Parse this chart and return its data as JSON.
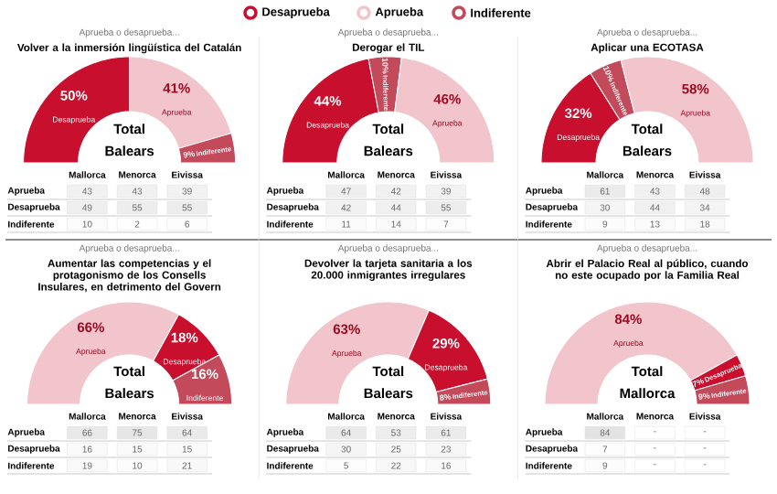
{
  "chart_data": [
    {
      "type": "donut",
      "subtitle": "Aprueba o desaprueba...",
      "title": "Volver a la inmersión lingüística del Catalán",
      "categories": [
        "Desaprueba",
        "Aprueba",
        "Indiferente"
      ],
      "values": [
        50,
        41,
        9
      ],
      "colors": [
        "#c8102e",
        "#f2c4cc",
        "#c24a5b"
      ],
      "value_labels": [
        "50%",
        "41%",
        "9%"
      ],
      "annotations": [
        "Total Balears"
      ],
      "legend": "top"
    },
    {
      "type": "heatmap",
      "categories": [
        "Mallorca",
        "Menorca",
        "Eivissa"
      ],
      "y_categories": [
        "Aprueba",
        "Desaprueba",
        "Indiferente"
      ],
      "cells": [
        [
          43,
          43,
          39
        ],
        [
          49,
          55,
          55
        ],
        [
          10,
          2,
          6
        ]
      ],
      "cell_labels": [
        [
          "43",
          "43",
          "39"
        ],
        [
          "49",
          "55",
          "55"
        ],
        [
          "10",
          "2",
          "6"
        ]
      ]
    },
    {
      "type": "donut",
      "subtitle": "Aprueba o desaprueba...",
      "title": "Derogar el TIL",
      "categories": [
        "Desaprueba",
        "Indiferente",
        "Aprueba"
      ],
      "values": [
        44,
        10,
        46
      ],
      "colors": [
        "#c8102e",
        "#c24a5b",
        "#f2c4cc"
      ],
      "value_labels": [
        "44%",
        "10%",
        "46%"
      ],
      "annotations": [
        "Total Balears"
      ]
    },
    {
      "type": "heatmap",
      "categories": [
        "Mallorca",
        "Menorca",
        "Eivissa"
      ],
      "y_categories": [
        "Aprueba",
        "Desaprueba",
        "Indiferente"
      ],
      "cells": [
        [
          47,
          42,
          39
        ],
        [
          42,
          44,
          55
        ],
        [
          11,
          14,
          7
        ]
      ],
      "cell_labels": [
        [
          "47",
          "42",
          "39"
        ],
        [
          "42",
          "44",
          "55"
        ],
        [
          "11",
          "14",
          "7"
        ]
      ]
    },
    {
      "type": "donut",
      "subtitle": "Aprueba o desaprueba...",
      "title": "Aplicar una ECOTASA",
      "categories": [
        "Desaprueba",
        "Indiferente",
        "Aprueba"
      ],
      "values": [
        32,
        10,
        58
      ],
      "colors": [
        "#c8102e",
        "#c24a5b",
        "#f2c4cc"
      ],
      "value_labels": [
        "32%",
        "10%",
        "58%"
      ],
      "annotations": [
        "Total Balears"
      ]
    },
    {
      "type": "heatmap",
      "categories": [
        "Mallorca",
        "Menorca",
        "Eivissa"
      ],
      "y_categories": [
        "Aprueba",
        "Desaprueba",
        "Indiferente"
      ],
      "cells": [
        [
          61,
          43,
          48
        ],
        [
          30,
          44,
          34
        ],
        [
          9,
          13,
          18
        ]
      ],
      "cell_labels": [
        [
          "61",
          "43",
          "48"
        ],
        [
          "30",
          "44",
          "34"
        ],
        [
          "9",
          "13",
          "18"
        ]
      ]
    },
    {
      "type": "donut",
      "subtitle": "Aprueba o desaprueba...",
      "title": "Aumentar las competencias y el protagonismo de los Consells Insulares, en detrimento del Govern",
      "categories": [
        "Aprueba",
        "Desaprueba",
        "Indiferente"
      ],
      "values": [
        66,
        18,
        16
      ],
      "colors": [
        "#f2c4cc",
        "#c8102e",
        "#c24a5b"
      ],
      "value_labels": [
        "66%",
        "18%",
        "16%"
      ],
      "annotations": [
        "Total Balears"
      ]
    },
    {
      "type": "heatmap",
      "categories": [
        "Mallorca",
        "Menorca",
        "Eivissa"
      ],
      "y_categories": [
        "Aprueba",
        "Desaprueba",
        "Indiferente"
      ],
      "cells": [
        [
          66,
          75,
          64
        ],
        [
          16,
          15,
          15
        ],
        [
          19,
          10,
          21
        ]
      ],
      "cell_labels": [
        [
          "66",
          "75",
          "64"
        ],
        [
          "16",
          "15",
          "15"
        ],
        [
          "19",
          "10",
          "21"
        ]
      ]
    },
    {
      "type": "donut",
      "subtitle": "Aprueba o desaprueba...",
      "title": "Devolver la tarjeta sanitaria a los 20.000 inmigrantes irregulares",
      "categories": [
        "Aprueba",
        "Desaprueba",
        "Indiferente"
      ],
      "values": [
        63,
        29,
        8
      ],
      "colors": [
        "#f2c4cc",
        "#c8102e",
        "#c24a5b"
      ],
      "value_labels": [
        "63%",
        "29%",
        "8%"
      ],
      "annotations": [
        "Total Balears"
      ]
    },
    {
      "type": "heatmap",
      "categories": [
        "Mallorca",
        "Menorca",
        "Eivissa"
      ],
      "y_categories": [
        "Aprueba",
        "Desaprueba",
        "Indiferente"
      ],
      "cells": [
        [
          64,
          53,
          61
        ],
        [
          30,
          25,
          23
        ],
        [
          5,
          22,
          16
        ]
      ],
      "cell_labels": [
        [
          "64",
          "53",
          "61"
        ],
        [
          "30",
          "25",
          "23"
        ],
        [
          "5",
          "22",
          "16"
        ]
      ]
    },
    {
      "type": "donut",
      "subtitle": "Aprueba o desaprueba...",
      "title": "Abrir el Palacio Real al público, cuando no este ocupado por la Familia Real",
      "categories": [
        "Aprueba",
        "Desaprueba",
        "Indiferente"
      ],
      "values": [
        84,
        7,
        9
      ],
      "colors": [
        "#f2c4cc",
        "#c8102e",
        "#c24a5b"
      ],
      "value_labels": [
        "84%",
        "7%",
        "9%"
      ],
      "annotations": [
        "Total Mallorca"
      ]
    },
    {
      "type": "heatmap",
      "categories": [
        "Mallorca",
        "Menorca",
        "Eivissa"
      ],
      "y_categories": [
        "Aprueba",
        "Desaprueba",
        "Indiferente"
      ],
      "cells": [
        [
          84,
          null,
          null
        ],
        [
          7,
          null,
          null
        ],
        [
          9,
          null,
          null
        ]
      ],
      "cell_labels": [
        [
          "84",
          "-",
          "-"
        ],
        [
          "7",
          "-",
          "-"
        ],
        [
          "9",
          "-",
          "-"
        ]
      ]
    }
  ]
}
